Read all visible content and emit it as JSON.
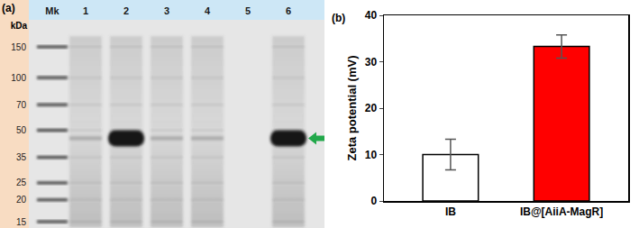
{
  "gel": {
    "panel_label": "(a)",
    "unit_label": "kDa",
    "marker_lane": "Mk",
    "lanes": [
      "1",
      "2",
      "3",
      "4",
      "5",
      "6"
    ],
    "marker_kda": [
      150,
      100,
      70,
      50,
      35,
      25,
      20,
      15
    ],
    "target_band_kda": 45,
    "overexpressed_lanes": [
      "2",
      "6"
    ],
    "empty_lanes": [
      "5"
    ]
  },
  "chart_data": {
    "type": "bar",
    "annotations": [
      "(b)"
    ],
    "y_label": "Zeta potential (mV)",
    "categories": [
      "IB",
      "IB@[AiiA-MagR]"
    ],
    "values": [
      10,
      33.3
    ],
    "errors": [
      3.3,
      2.5
    ],
    "colors": [
      "#ffffff",
      "#ff0000"
    ],
    "ylim": [
      0,
      40
    ],
    "yticks": [
      0,
      10,
      20,
      30,
      40
    ],
    "grid": false
  }
}
